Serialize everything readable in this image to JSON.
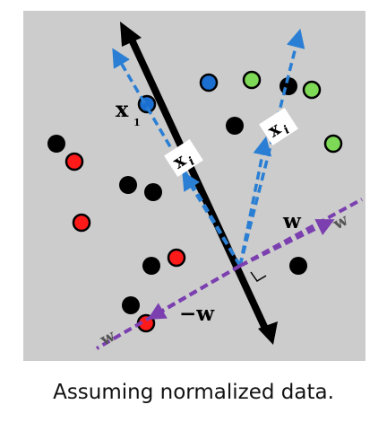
{
  "figure": {
    "labels": {
      "x1": "x",
      "x1_sub": "1",
      "xi_left": "x",
      "xi_left_sub": "i",
      "xi_right": "x",
      "xi_right_sub": "i",
      "w": "w",
      "w_tip": "w",
      "neg_w": "−w",
      "neg_w_tip": "w"
    },
    "colors": {
      "background": "#cccccc",
      "black_point": "#000000",
      "red_point": "#ff1a1a",
      "blue_point": "#1a6fd1",
      "green_point": "#7ed957",
      "axis_arrow": "#000000",
      "dashed_blue": "#2a7fd4",
      "dashed_purple": "#7b3fb0"
    },
    "points": [
      {
        "class": "black"
      },
      {
        "class": "black"
      },
      {
        "class": "black"
      },
      {
        "class": "black"
      },
      {
        "class": "black"
      },
      {
        "class": "black"
      },
      {
        "class": "black"
      },
      {
        "class": "black"
      },
      {
        "class": "red"
      },
      {
        "class": "red"
      },
      {
        "class": "red"
      },
      {
        "class": "red"
      },
      {
        "class": "blue"
      },
      {
        "class": "blue"
      },
      {
        "class": "green"
      },
      {
        "class": "green"
      },
      {
        "class": "green"
      }
    ]
  },
  "caption": "Assuming normalized data."
}
